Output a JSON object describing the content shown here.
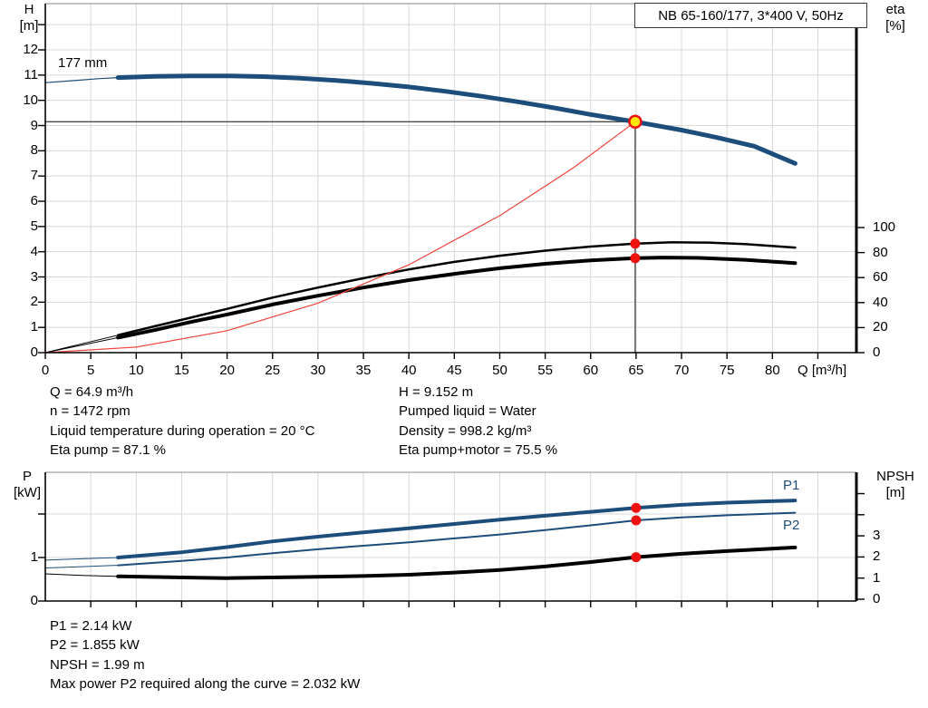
{
  "colors": {
    "curve_blue": "#1d4e7b",
    "curve_black": "#000000",
    "curve_red": "#f0433b",
    "dot_red": "#ee1111",
    "dot_yellow": "#ffe60a",
    "grid": "#d8d8d8",
    "frame_top": "#888888",
    "axis": "#000000",
    "guide": "#4a4a4a",
    "label_blue": "#1d4e7b"
  },
  "header": {
    "title_box": "NB 65-160/177, 3*400 V, 50Hz"
  },
  "main_chart": {
    "impeller_label": "177 mm",
    "y_left_label": [
      "H",
      "[m]"
    ],
    "y_right_label": [
      "eta",
      "[%]"
    ],
    "x_label": "Q [m³/h]"
  },
  "bottom_chart": {
    "y_left_label": [
      "P",
      "[kW]"
    ],
    "y_right_label": [
      "NPSH",
      "[m]"
    ],
    "p1_label": "P1",
    "p2_label": "P2"
  },
  "info_top_left": [
    "Q = 64.9 m³/h",
    "n = 1472 rpm",
    "Liquid temperature during operation = 20 °C",
    "Eta pump = 87.1 %"
  ],
  "info_top_right": [
    "H = 9.152 m",
    "Pumped liquid = Water",
    "Density = 998.2 kg/m³",
    "Eta pump+motor = 75.5 %"
  ],
  "info_bottom": [
    "P1 = 2.14 kW",
    "P2 = 1.855 kW",
    "NPSH = 1.99 m",
    "Max power P2 required along the curve = 2.032 kW"
  ],
  "chart_data": [
    {
      "id": "main",
      "type": "line",
      "title": "NB 65-160/177, 3*400 V, 50Hz",
      "x_axis": {
        "label": "Q [m³/h]",
        "range": [
          0,
          89.24
        ],
        "ticks": [
          0,
          5,
          10,
          15,
          20,
          25,
          30,
          35,
          40,
          45,
          50,
          55,
          60,
          65,
          70,
          75,
          80
        ],
        "unlabeled_ticks": [
          85
        ]
      },
      "y_left": {
        "label": "H [m]",
        "range": [
          0,
          13.83
        ],
        "ticks": [
          0,
          1,
          2,
          3,
          4,
          5,
          6,
          7,
          8,
          9,
          10,
          11,
          12
        ],
        "unlabeled_ticks": [
          13
        ]
      },
      "y_right": {
        "label": "eta [%]",
        "range": [
          0,
          278
        ],
        "ticks": [
          0,
          20,
          40,
          60,
          80,
          100
        ],
        "unlabeled_ticks": []
      },
      "h_grid": {
        "axis": "H",
        "values": [
          1,
          2,
          3,
          4,
          5,
          6,
          7,
          8,
          9,
          10,
          11,
          12,
          13
        ]
      },
      "guides": [
        {
          "type": "crosshair",
          "q": 64.9,
          "v": 9.152,
          "axis": "H"
        }
      ],
      "series": [
        {
          "name": "pump-head-177mm-lead",
          "axis": "H",
          "color": "curve_blue",
          "width": 1.2,
          "points": [
            [
              0,
              10.7
            ],
            [
              3,
              10.78
            ],
            [
              6,
              10.86
            ],
            [
              8,
              10.9
            ]
          ]
        },
        {
          "name": "pump-head-177mm",
          "axis": "H",
          "color": "curve_blue",
          "width": 5,
          "points": [
            [
              8,
              10.9
            ],
            [
              12,
              10.95
            ],
            [
              16,
              10.97
            ],
            [
              20,
              10.97
            ],
            [
              24,
              10.94
            ],
            [
              28,
              10.88
            ],
            [
              32,
              10.79
            ],
            [
              36,
              10.67
            ],
            [
              40,
              10.53
            ],
            [
              44,
              10.36
            ],
            [
              48,
              10.16
            ],
            [
              52,
              9.94
            ],
            [
              56,
              9.7
            ],
            [
              60,
              9.44
            ],
            [
              64.9,
              9.152
            ],
            [
              70,
              8.82
            ],
            [
              74,
              8.52
            ],
            [
              78,
              8.18
            ],
            [
              82.5,
              7.5
            ]
          ]
        },
        {
          "name": "eta-pump-lead",
          "axis": "eta",
          "color": "curve_black",
          "width": 1,
          "points": [
            [
              0,
              0
            ],
            [
              4,
              7
            ],
            [
              8,
              14
            ]
          ]
        },
        {
          "name": "eta-pump",
          "axis": "eta",
          "color": "curve_black",
          "width": 2.5,
          "points": [
            [
              8,
              14
            ],
            [
              12,
              21
            ],
            [
              16,
              28
            ],
            [
              20,
              35
            ],
            [
              25,
              44
            ],
            [
              30,
              52
            ],
            [
              35,
              59.5
            ],
            [
              40,
              66.5
            ],
            [
              45,
              72.5
            ],
            [
              50,
              77.5
            ],
            [
              55,
              81.5
            ],
            [
              60,
              84.8
            ],
            [
              64.9,
              87.1
            ],
            [
              69,
              88.2
            ],
            [
              73,
              88
            ],
            [
              77,
              86.8
            ],
            [
              82.5,
              84
            ]
          ]
        },
        {
          "name": "eta-pump-motor-lead",
          "axis": "eta",
          "color": "curve_black",
          "width": 1,
          "points": [
            [
              0,
              0
            ],
            [
              4,
              6
            ],
            [
              8,
              12
            ]
          ]
        },
        {
          "name": "eta-pump-motor",
          "axis": "eta",
          "color": "curve_black",
          "width": 4,
          "points": [
            [
              8,
              12
            ],
            [
              12,
              18
            ],
            [
              16,
              24.5
            ],
            [
              20,
              30.5
            ],
            [
              25,
              38.5
            ],
            [
              30,
              45.5
            ],
            [
              35,
              52
            ],
            [
              40,
              58
            ],
            [
              45,
              63
            ],
            [
              50,
              67.5
            ],
            [
              55,
              71
            ],
            [
              60,
              73.8
            ],
            [
              64.9,
              75.5
            ],
            [
              68,
              76
            ],
            [
              72,
              75.7
            ],
            [
              77,
              74.2
            ],
            [
              82.5,
              71.5
            ]
          ]
        },
        {
          "name": "system-curve",
          "axis": "H",
          "color": "curve_red",
          "width": 1.2,
          "points": [
            [
              0,
              0
            ],
            [
              10,
              0.22
            ],
            [
              20,
              0.87
            ],
            [
              30,
              1.96
            ],
            [
              40,
              3.48
            ],
            [
              50,
              5.43
            ],
            [
              58,
              7.3
            ],
            [
              64.9,
              9.152
            ]
          ]
        }
      ],
      "markers": [
        {
          "q": 64.9,
          "v": 87.1,
          "axis": "eta",
          "style": "dot"
        },
        {
          "q": 64.9,
          "v": 75.5,
          "axis": "eta",
          "style": "dot"
        },
        {
          "q": 64.9,
          "v": 9.152,
          "axis": "H",
          "style": "duty"
        }
      ]
    },
    {
      "id": "bot",
      "type": "line",
      "title": "Power and NPSH",
      "x_axis": {
        "label": "",
        "range": [
          0,
          89.24
        ],
        "ticks": [],
        "unlabeled_ticks": [
          5,
          10,
          15,
          20,
          25,
          30,
          35,
          40,
          45,
          50,
          55,
          60,
          65,
          70,
          75,
          80,
          85
        ]
      },
      "y_left": {
        "label": "P [kW]",
        "range": [
          0,
          2.96
        ],
        "ticks": [
          0,
          1
        ],
        "unlabeled_ticks": [
          2
        ]
      },
      "y_right": {
        "label": "NPSH [m]",
        "range": [
          0,
          6.0
        ],
        "ticks": [
          0,
          1,
          2,
          3
        ],
        "unlabeled_ticks": [
          4,
          5
        ]
      },
      "h_grid": {
        "axis": "P",
        "values": [
          1,
          2
        ]
      },
      "guides": [],
      "series": [
        {
          "name": "p1-lead",
          "axis": "P",
          "color": "curve_blue",
          "width": 1,
          "points": [
            [
              0,
              0.94
            ],
            [
              4,
              0.97
            ],
            [
              8,
              1.0
            ]
          ]
        },
        {
          "name": "p1",
          "axis": "P",
          "color": "curve_blue",
          "width": 4,
          "points": [
            [
              8,
              1.0
            ],
            [
              15,
              1.12
            ],
            [
              20,
              1.24
            ],
            [
              25,
              1.37
            ],
            [
              30,
              1.48
            ],
            [
              35,
              1.58
            ],
            [
              40,
              1.67
            ],
            [
              45,
              1.77
            ],
            [
              50,
              1.87
            ],
            [
              55,
              1.96
            ],
            [
              60,
              2.05
            ],
            [
              65,
              2.14
            ],
            [
              70,
              2.21
            ],
            [
              75,
              2.26
            ],
            [
              79,
              2.29
            ],
            [
              82.5,
              2.31
            ]
          ]
        },
        {
          "name": "p2-lead",
          "axis": "P",
          "color": "curve_blue",
          "width": 1,
          "points": [
            [
              0,
              0.76
            ],
            [
              4,
              0.79
            ],
            [
              8,
              0.82
            ]
          ]
        },
        {
          "name": "p2",
          "axis": "P",
          "color": "curve_blue",
          "width": 2,
          "points": [
            [
              8,
              0.82
            ],
            [
              15,
              0.92
            ],
            [
              20,
              1.0
            ],
            [
              25,
              1.1
            ],
            [
              30,
              1.19
            ],
            [
              35,
              1.27
            ],
            [
              40,
              1.35
            ],
            [
              45,
              1.44
            ],
            [
              50,
              1.53
            ],
            [
              55,
              1.63
            ],
            [
              60,
              1.74
            ],
            [
              65,
              1.855
            ],
            [
              70,
              1.92
            ],
            [
              75,
              1.97
            ],
            [
              82.5,
              2.03
            ]
          ]
        },
        {
          "name": "npsh-lead",
          "axis": "NPSH",
          "color": "curve_black",
          "width": 1,
          "points": [
            [
              0,
              1.2
            ],
            [
              4,
              1.13
            ],
            [
              8,
              1.08
            ]
          ]
        },
        {
          "name": "npsh",
          "axis": "NPSH",
          "color": "curve_black",
          "width": 4,
          "points": [
            [
              8,
              1.08
            ],
            [
              15,
              1.03
            ],
            [
              20,
              1.0
            ],
            [
              25,
              1.03
            ],
            [
              30,
              1.06
            ],
            [
              35,
              1.1
            ],
            [
              40,
              1.16
            ],
            [
              45,
              1.26
            ],
            [
              50,
              1.38
            ],
            [
              55,
              1.55
            ],
            [
              60,
              1.76
            ],
            [
              65,
              1.99
            ],
            [
              70,
              2.15
            ],
            [
              75,
              2.28
            ],
            [
              82.5,
              2.45
            ]
          ]
        }
      ],
      "markers": [
        {
          "q": 65,
          "v": 2.14,
          "axis": "P",
          "style": "dot"
        },
        {
          "q": 65,
          "v": 1.855,
          "axis": "P",
          "style": "dot"
        },
        {
          "q": 65,
          "v": 1.99,
          "axis": "NPSH",
          "style": "dot"
        }
      ],
      "duty_values": {
        "p1_kw": 2.14,
        "p2_kw": 1.855,
        "npsh_m": 1.99,
        "max_p2_kw": 2.032
      }
    }
  ]
}
